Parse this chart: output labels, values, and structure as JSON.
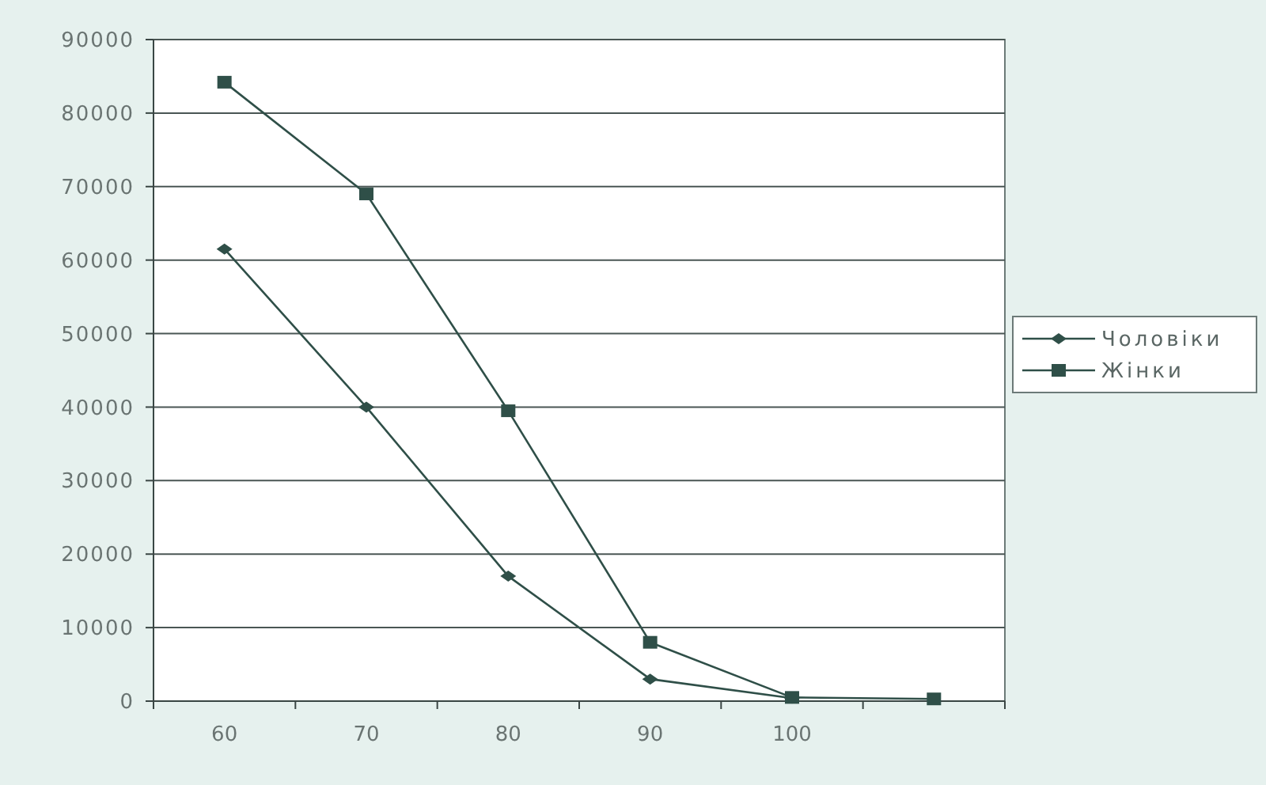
{
  "chart_data": {
    "type": "line",
    "categories": [
      "60",
      "70",
      "80",
      "90",
      "100",
      null
    ],
    "series": [
      {
        "name": "Чоловіки",
        "color": "#2f4f48",
        "values": [
          61500,
          40000,
          17000,
          3000,
          400,
          null
        ],
        "marker": "diamond"
      },
      {
        "name": "Жінки",
        "color": "#2f4f48",
        "values": [
          84200,
          69000,
          39500,
          8000,
          500,
          300
        ],
        "marker": "square"
      }
    ],
    "ylim": [
      0,
      90000
    ],
    "yticks": [
      0,
      10000,
      20000,
      30000,
      40000,
      50000,
      60000,
      70000,
      80000,
      90000
    ],
    "grid": "y",
    "legend": "right",
    "line_style": "solid"
  }
}
